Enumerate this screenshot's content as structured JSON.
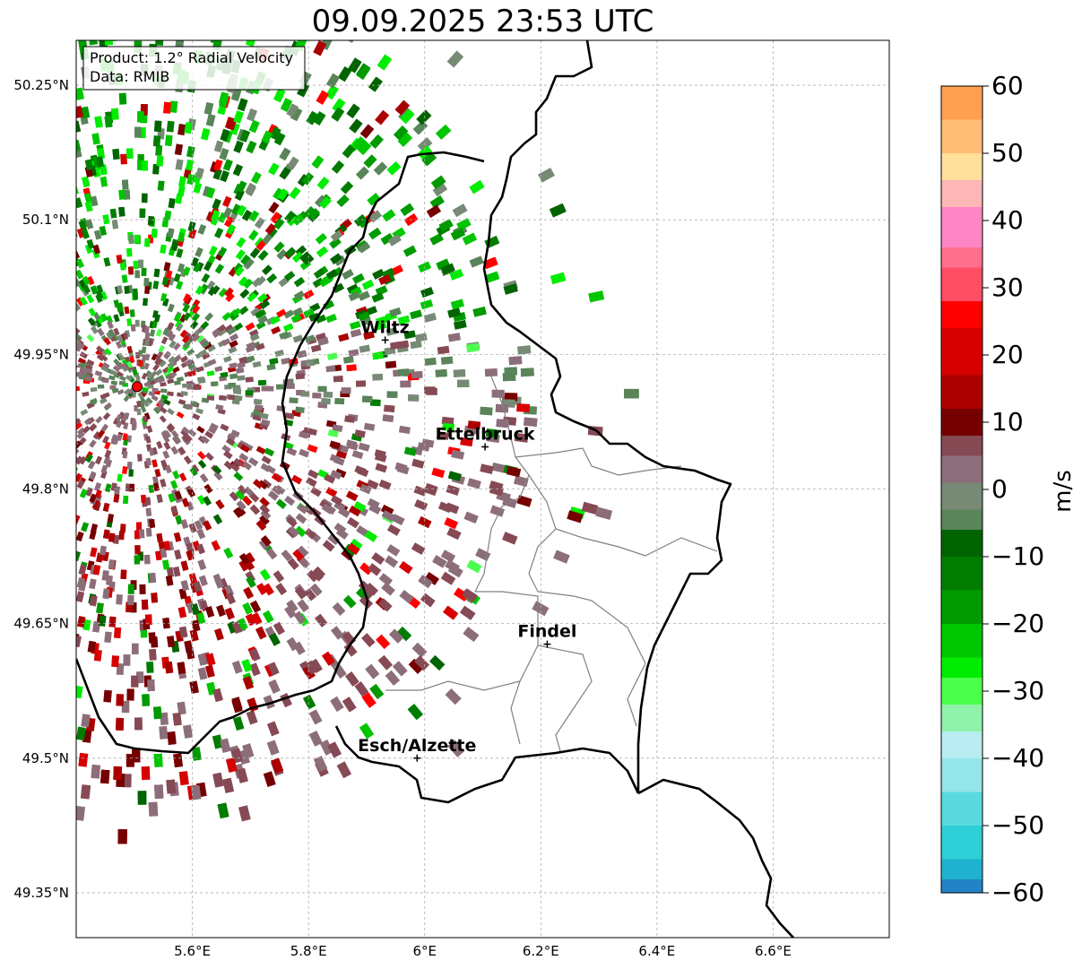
{
  "title": "09.09.2025 23:53 UTC",
  "info_box": {
    "line1": "Product: 1.2° Radial Velocity",
    "line2": "Data: RMIB"
  },
  "map_extent": {
    "lon_min": 5.4,
    "lon_max": 6.8,
    "lat_min": 49.3,
    "lat_max": 50.3
  },
  "x_ticks": [
    {
      "value": 5.6,
      "label": "5.6°E"
    },
    {
      "value": 5.8,
      "label": "5.8°E"
    },
    {
      "value": 6.0,
      "label": "6°E"
    },
    {
      "value": 6.2,
      "label": "6.2°E"
    },
    {
      "value": 6.4,
      "label": "6.4°E"
    },
    {
      "value": 6.6,
      "label": "6.6°E"
    }
  ],
  "y_ticks": [
    {
      "value": 50.25,
      "label": "50.25°N"
    },
    {
      "value": 50.1,
      "label": "50.1°N"
    },
    {
      "value": 49.95,
      "label": "49.95°N"
    },
    {
      "value": 49.8,
      "label": "49.8°N"
    },
    {
      "value": 49.65,
      "label": "49.65°N"
    },
    {
      "value": 49.5,
      "label": "49.5°N"
    },
    {
      "value": 49.35,
      "label": "49.35°N"
    }
  ],
  "radar_site": {
    "lon": 5.505,
    "lat": 49.914,
    "color": "#ff0000"
  },
  "cities": [
    {
      "name": "Wiltz",
      "lon": 5.932,
      "lat": 49.966
    },
    {
      "name": "Ettelbruck",
      "lon": 6.104,
      "lat": 49.847
    },
    {
      "name": "Findel",
      "lon": 6.211,
      "lat": 49.627
    },
    {
      "name": "Esch/Alzette",
      "lon": 5.987,
      "lat": 49.5
    }
  ],
  "colorbar": {
    "label": "m/s",
    "min": -60,
    "max": 60,
    "tick_values": [
      60,
      50,
      40,
      30,
      20,
      10,
      0,
      -10,
      -20,
      -30,
      -40,
      -50,
      -60
    ],
    "tick_labels": [
      "60",
      "50",
      "40",
      "30",
      "20",
      "10",
      "0",
      "−10",
      "−20",
      "−30",
      "−40",
      "−50",
      "−60"
    ],
    "bands": [
      {
        "from": 55,
        "to": 60,
        "color": "#ff9f50"
      },
      {
        "from": 50,
        "to": 55,
        "color": "#ffbd75"
      },
      {
        "from": 46,
        "to": 50,
        "color": "#ffe09a"
      },
      {
        "from": 42,
        "to": 46,
        "color": "#ffb6b6"
      },
      {
        "from": 36,
        "to": 42,
        "color": "#ff85c4"
      },
      {
        "from": 33,
        "to": 36,
        "color": "#ff6f8e"
      },
      {
        "from": 28,
        "to": 33,
        "color": "#ff4d64"
      },
      {
        "from": 24,
        "to": 28,
        "color": "#ff0000"
      },
      {
        "from": 17,
        "to": 24,
        "color": "#d60000"
      },
      {
        "from": 12,
        "to": 17,
        "color": "#ab0000"
      },
      {
        "from": 8,
        "to": 12,
        "color": "#760000"
      },
      {
        "from": 5,
        "to": 8,
        "color": "#864a55"
      },
      {
        "from": 1,
        "to": 5,
        "color": "#8c6e7a"
      },
      {
        "from": -3,
        "to": 1,
        "color": "#778a75"
      },
      {
        "from": -6,
        "to": -3,
        "color": "#5a8459"
      },
      {
        "from": -10,
        "to": -6,
        "color": "#006400"
      },
      {
        "from": -15,
        "to": -10,
        "color": "#007d00"
      },
      {
        "from": -20,
        "to": -15,
        "color": "#009a00"
      },
      {
        "from": -25,
        "to": -20,
        "color": "#00c600"
      },
      {
        "from": -28,
        "to": -25,
        "color": "#00ec00"
      },
      {
        "from": -32,
        "to": -28,
        "color": "#4dff4d"
      },
      {
        "from": -36,
        "to": -32,
        "color": "#8ff2a8"
      },
      {
        "from": -40,
        "to": -36,
        "color": "#b8ecf0"
      },
      {
        "from": -45,
        "to": -40,
        "color": "#94e6e8"
      },
      {
        "from": -50,
        "to": -45,
        "color": "#5ad9dd"
      },
      {
        "from": -55,
        "to": -50,
        "color": "#2ecfd6"
      },
      {
        "from": -58,
        "to": -55,
        "color": "#1fb2d0"
      },
      {
        "from": -60,
        "to": -58,
        "color": "#2283c6"
      }
    ]
  }
}
